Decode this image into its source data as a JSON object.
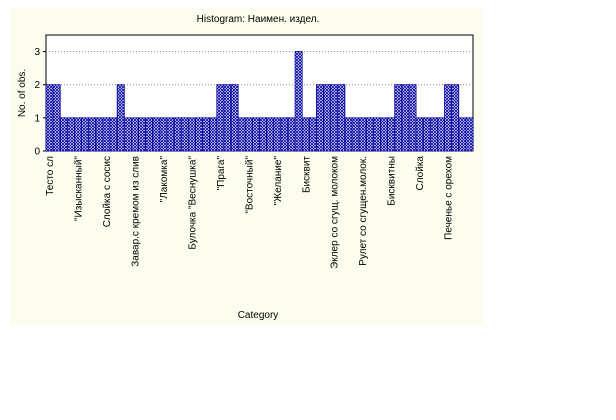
{
  "chart_data": {
    "type": "bar",
    "title": "Histogram: Наимен. издел.",
    "xlabel": "Category",
    "ylabel": "No. of obs.",
    "categories": [
      "Тесто сл",
      null,
      null,
      null,
      "\"Изысканный\"",
      null,
      null,
      null,
      "Слойка с сосис",
      null,
      null,
      null,
      "Завар.с кремом из слив",
      null,
      null,
      null,
      "\"Лакомка\"",
      null,
      null,
      null,
      "Булочка \"Веснушка\"",
      null,
      null,
      null,
      "\"Прага\"",
      null,
      null,
      null,
      "\"Восточный\"",
      null,
      null,
      null,
      "\"Желание\"",
      null,
      null,
      null,
      "Бисквит",
      null,
      null,
      null,
      "Эклер со сгущ. молоком",
      null,
      null,
      null,
      "Рулет со сгущен.молок.",
      null,
      null,
      null,
      "Бисквитны",
      null,
      null,
      null,
      "Слойка",
      null,
      null,
      null,
      "Печенье с орехом",
      null,
      null,
      null
    ],
    "values": [
      2,
      2,
      1,
      1,
      1,
      1,
      1,
      1,
      1,
      1,
      2,
      1,
      1,
      1,
      1,
      1,
      1,
      1,
      1,
      1,
      1,
      1,
      1,
      1,
      2,
      2,
      2,
      1,
      1,
      1,
      1,
      1,
      1,
      1,
      1,
      3,
      1,
      1,
      2,
      2,
      2,
      2,
      1,
      1,
      1,
      1,
      1,
      1,
      1,
      2,
      2,
      2,
      1,
      1,
      1,
      1,
      2,
      2,
      1,
      1
    ],
    "color": "#0000a0",
    "ylim": [
      0,
      3.5
    ],
    "yticks": [
      0,
      1,
      2,
      3
    ],
    "grid": true
  }
}
